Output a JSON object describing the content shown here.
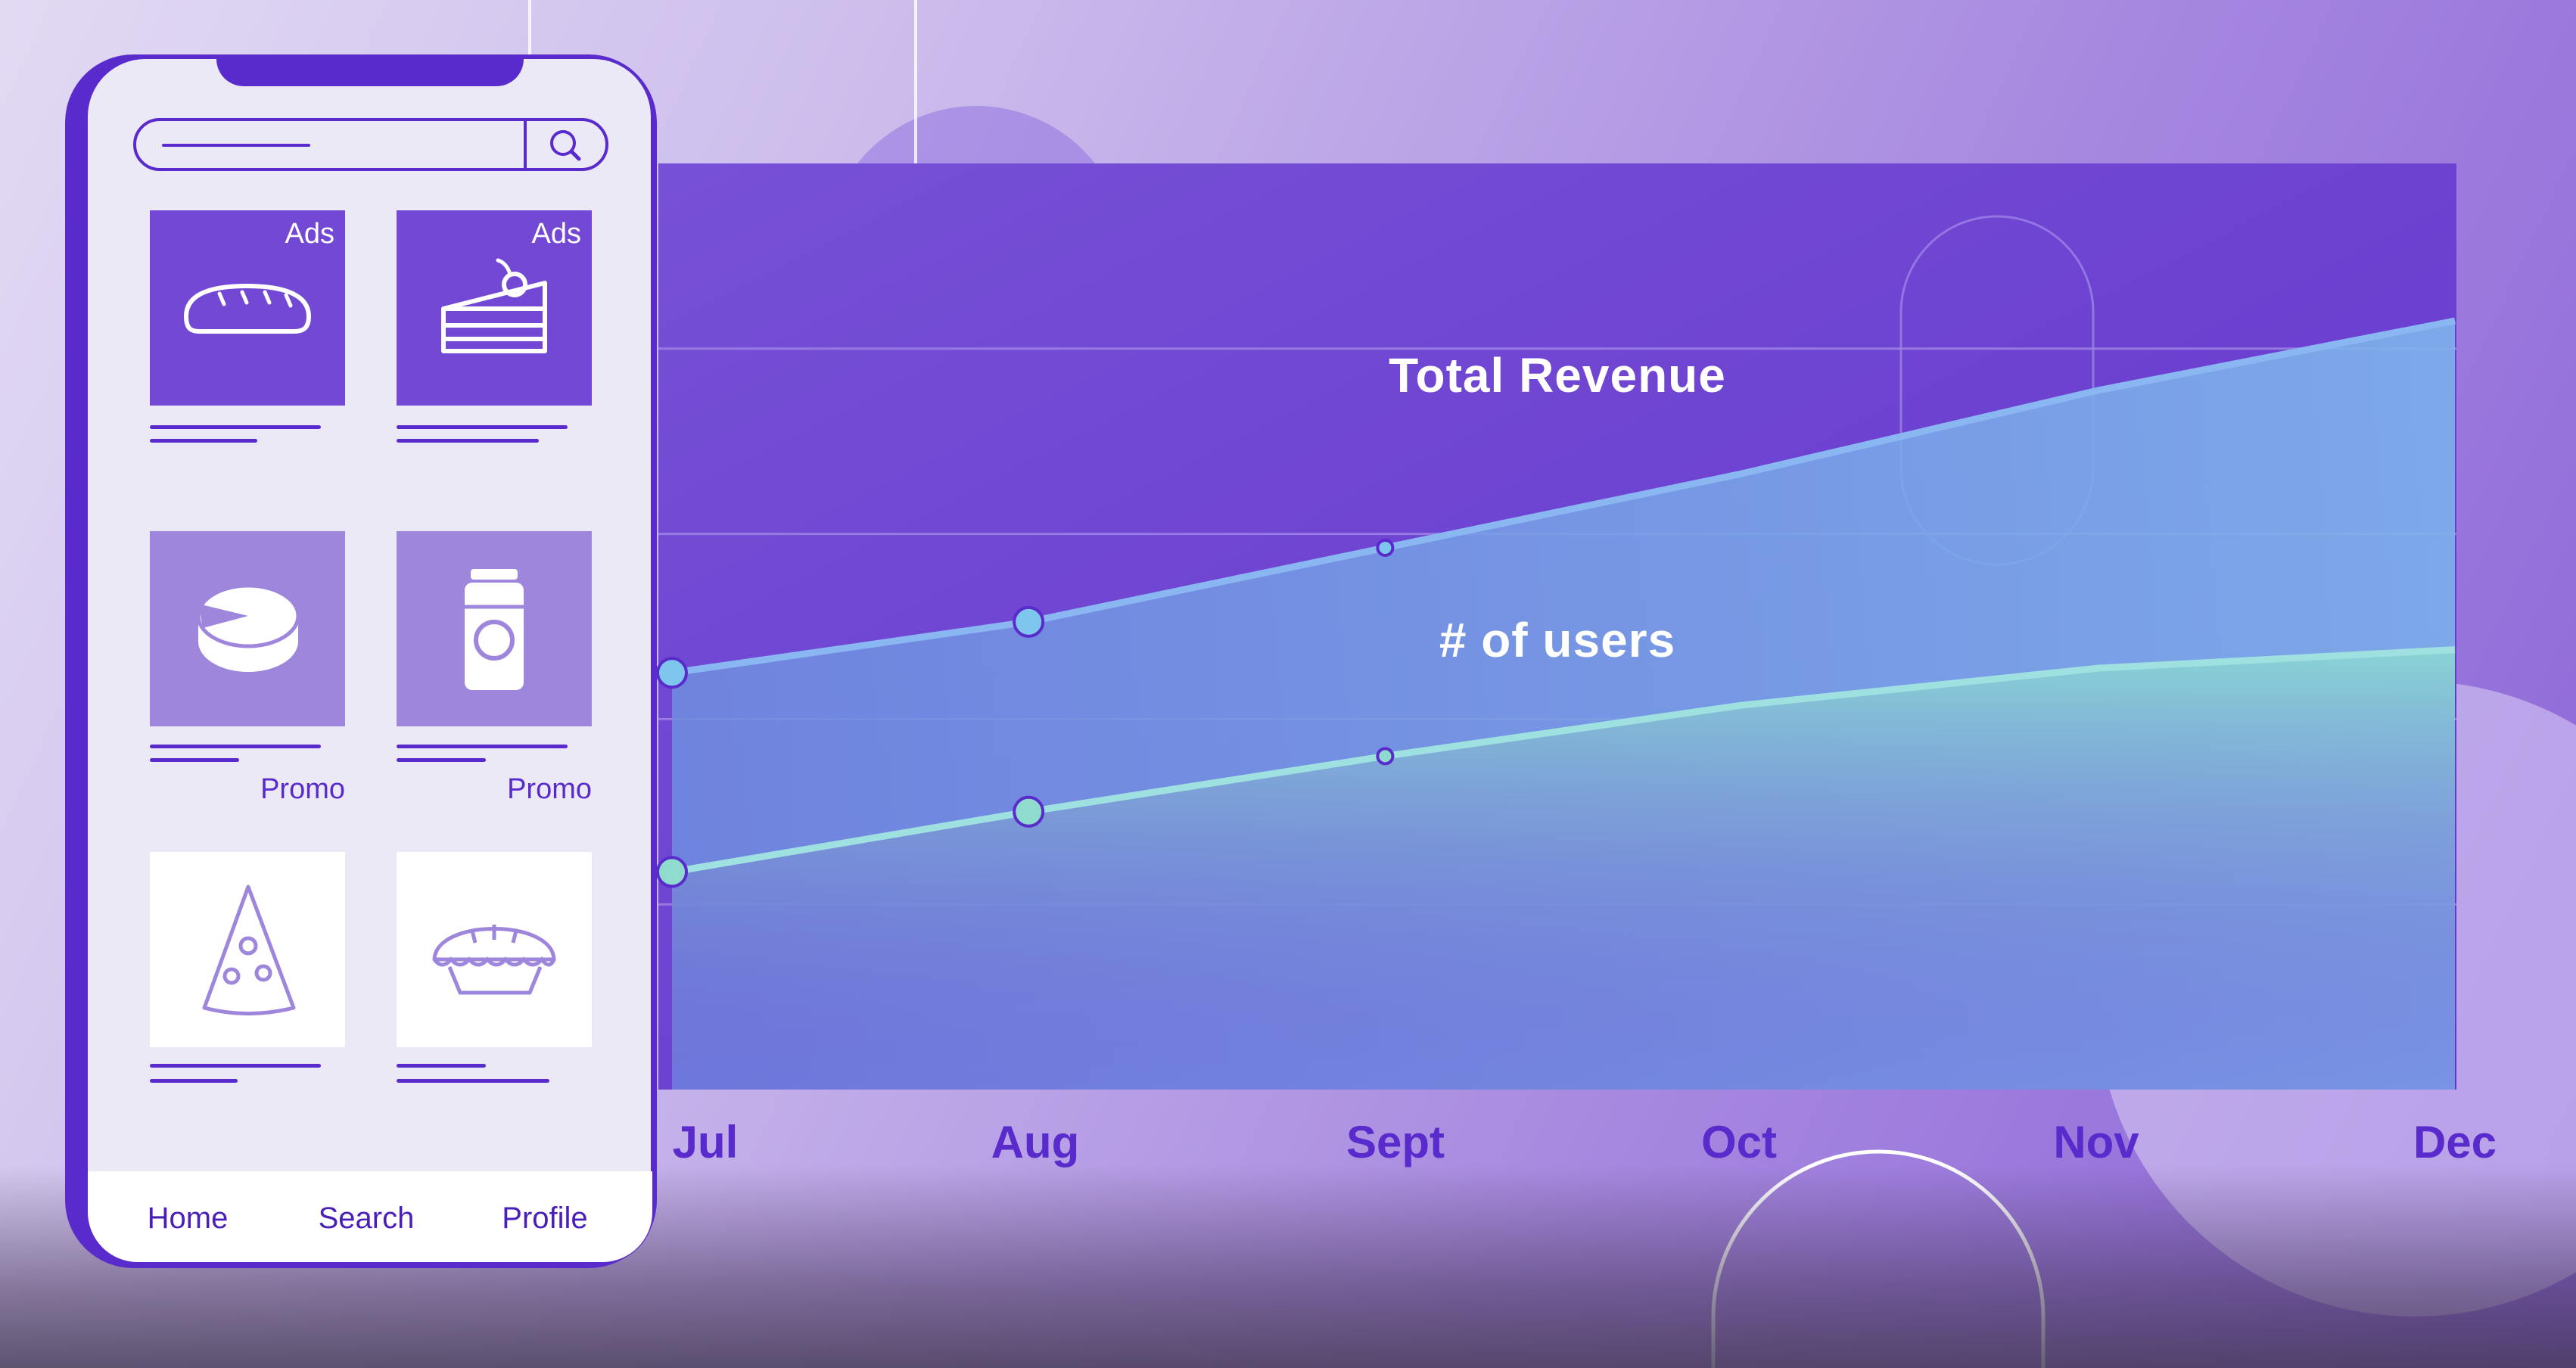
{
  "colors": {
    "purple_dark": "#5a2bcc",
    "chart_bg": "#6a3fd1",
    "revenue_fill": "#6e9ce0",
    "users_fill": "#88d4d3",
    "revenue_line": "#8ab6f2",
    "users_line": "#9fe0e0",
    "dot": "#7fd0e8"
  },
  "chart_data": {
    "type": "area",
    "x": [
      "Jul",
      "Aug",
      "Sept",
      "Oct",
      "Nov",
      "Dec"
    ],
    "series": [
      {
        "name": "Total Revenue",
        "values": [
          45,
          50.5,
          58.5,
          66.5,
          75.5,
          83
        ]
      },
      {
        "name": "# of users",
        "values": [
          23.5,
          30,
          36,
          41.5,
          45.5,
          47.5
        ]
      }
    ],
    "ylim": [
      0,
      100
    ],
    "grid": "horizontal",
    "title": "",
    "xlabel": "",
    "ylabel": ""
  },
  "phone": {
    "search": {
      "icon": "search-icon"
    },
    "tiles": [
      {
        "badge": "Ads",
        "icon": "bread-icon",
        "caption": ""
      },
      {
        "badge": "Ads",
        "icon": "cake-icon",
        "caption": ""
      },
      {
        "badge": "",
        "icon": "cheese-icon",
        "caption": "Promo"
      },
      {
        "badge": "",
        "icon": "jar-icon",
        "caption": "Promo"
      },
      {
        "badge": "",
        "icon": "pizza-icon",
        "caption": ""
      },
      {
        "badge": "",
        "icon": "pie-icon",
        "caption": ""
      }
    ],
    "nav": {
      "home": "Home",
      "search": "Search",
      "profile": "Profile"
    }
  }
}
